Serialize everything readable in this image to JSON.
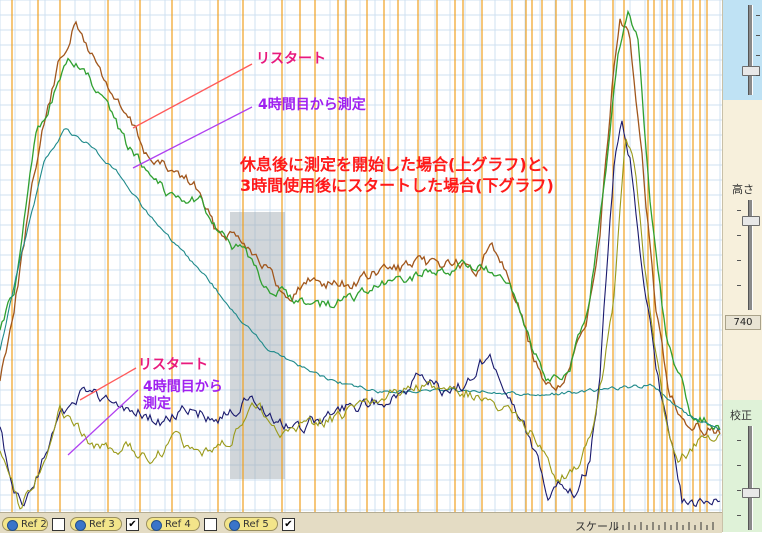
{
  "annotations": {
    "upper_restart": "リスタート",
    "upper_from4h": "4時間目から測定",
    "caption_line1": "休息後に測定を開始した場合(上グラフ)と、",
    "caption_line2": "3時間使用後にスタートした場合(下グラフ)",
    "lower_restart": "リスタート",
    "lower_from4h_a": "4時間目から",
    "lower_from4h_b": "測定"
  },
  "right_panel": {
    "height_label": "高さ",
    "height_value": "740",
    "calib_label": "校正"
  },
  "bottom_bar": {
    "refs": [
      {
        "label": "Ref 2",
        "checked": false
      },
      {
        "label": "Ref 3",
        "checked": true
      },
      {
        "label": "Ref 4",
        "checked": false
      },
      {
        "label": "Ref 5",
        "checked": true
      }
    ],
    "scale_label": "スケール"
  },
  "colors": {
    "gridline": "#cfe0f0",
    "marker_line": "#f0a020",
    "shade": "#9aa3ad",
    "brown_series": "#a0561c",
    "green_series": "#30a030",
    "teal_series": "#1f8a8a",
    "navy_series": "#1a1a6e",
    "olive_series": "#9a9a1a"
  },
  "icons": [
    "ref-toggle-icon",
    "checkbox-icon",
    "slider-thumb-icon"
  ]
}
